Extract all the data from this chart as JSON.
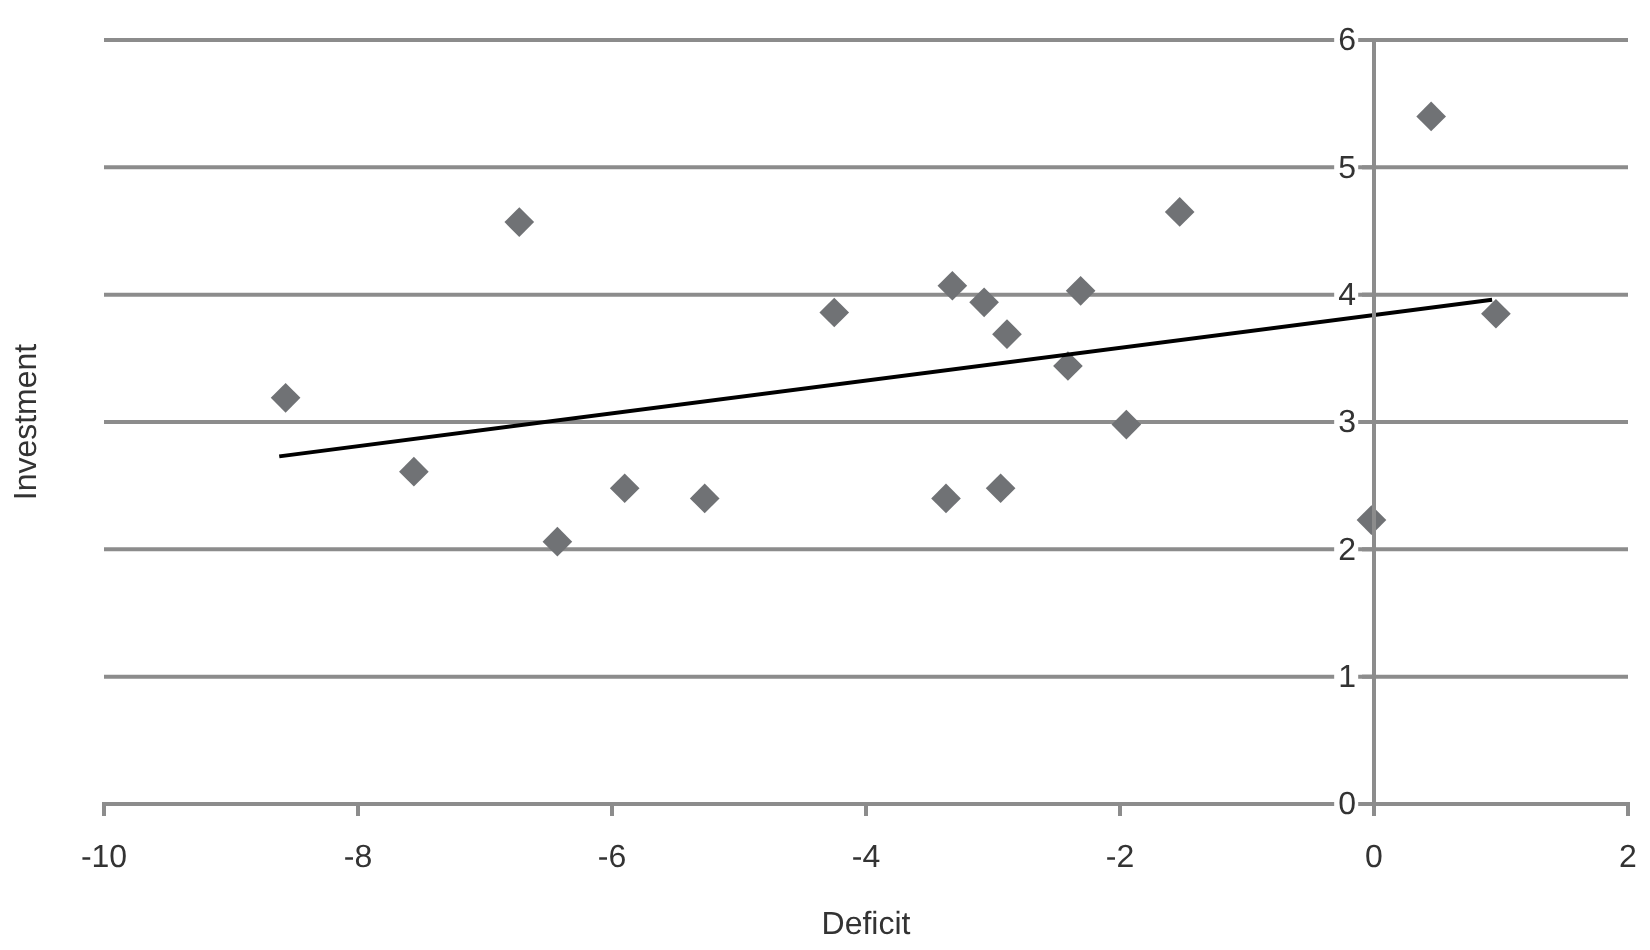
{
  "chart_data": {
    "type": "scatter",
    "xlabel": "Deficit",
    "ylabel": "Investment",
    "xlim": [
      -10,
      2
    ],
    "xticks": [
      -10,
      -8,
      -6,
      -4,
      -2,
      0,
      2
    ],
    "ylim": [
      0,
      6
    ],
    "yticks": [
      0,
      1,
      2,
      3,
      4,
      5,
      6
    ],
    "grid": "y",
    "marker": "diamond",
    "series": [
      {
        "type": "scatter",
        "color": "#707275",
        "x": [
          -8.57,
          -7.56,
          -6.73,
          -6.43,
          -5.9,
          -5.27,
          -4.25,
          -3.32,
          -3.07,
          -2.89,
          -3.37,
          -2.94,
          -2.31,
          -2.41,
          -1.95,
          -1.53,
          -0.02,
          0.45,
          0.96
        ],
        "values": [
          3.19,
          2.61,
          4.57,
          2.06,
          2.48,
          2.4,
          3.86,
          4.07,
          3.94,
          3.69,
          2.4,
          2.48,
          4.03,
          3.44,
          2.98,
          4.65,
          2.23,
          5.4,
          3.85
        ]
      },
      {
        "type": "line",
        "color": "#000000",
        "line_style": "solid",
        "marker": "none",
        "x": [
          -8.62,
          0.93
        ],
        "values": [
          2.73,
          3.96
        ]
      }
    ]
  }
}
